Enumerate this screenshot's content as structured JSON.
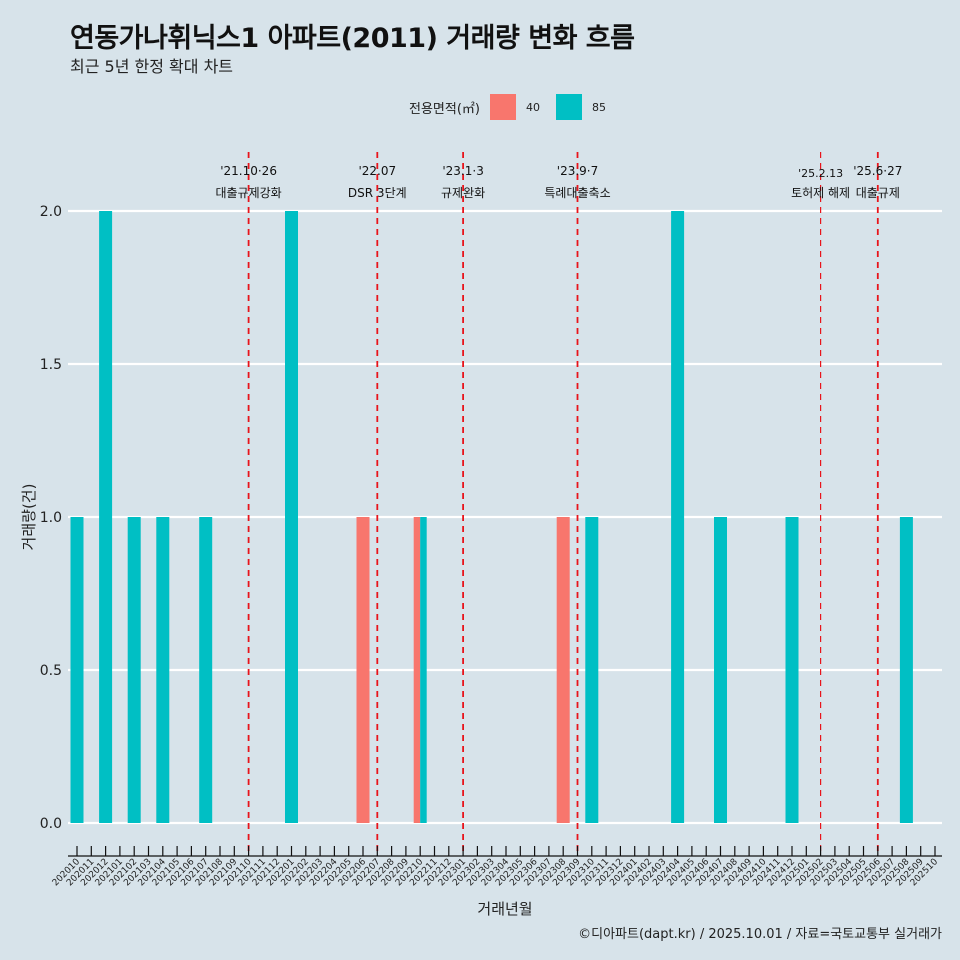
{
  "header": {
    "title": "연동가나휘닉스1 아파트(2011) 거래량 변화 흐름",
    "subtitle": "최근 5년 한정 확대 차트"
  },
  "legend": {
    "title": "전용면적(㎡)",
    "items": [
      {
        "label": "40",
        "color": "#F8766D"
      },
      {
        "label": "85",
        "color": "#00BFC4"
      }
    ]
  },
  "caption": "©디아파트(dapt.kr) / 2025.10.01 / 자료=국토교통부 실거래가",
  "chart_data": {
    "type": "bar",
    "title": "연동가나휘닉스1 아파트(2011) 거래량 변화 흐름",
    "subtitle": "최근 5년 한정 확대 차트",
    "xlabel": "거래년월",
    "ylabel": "거래량(건)",
    "ylim": [
      0,
      2
    ],
    "yticks": [
      "0.0",
      "0.5",
      "1.0",
      "1.5",
      "2.0"
    ],
    "ytick_values": [
      0,
      0.5,
      1.0,
      1.5,
      2.0
    ],
    "grid": true,
    "legend_position": "top",
    "categories": [
      "202010",
      "202011",
      "202012",
      "202101",
      "202102",
      "202103",
      "202104",
      "202105",
      "202106",
      "202107",
      "202108",
      "202109",
      "202110",
      "202111",
      "202112",
      "202201",
      "202202",
      "202203",
      "202204",
      "202205",
      "202206",
      "202207",
      "202208",
      "202209",
      "202210",
      "202211",
      "202212",
      "202301",
      "202302",
      "202303",
      "202304",
      "202305",
      "202306",
      "202307",
      "202308",
      "202309",
      "202310",
      "202311",
      "202312",
      "202401",
      "202402",
      "202403",
      "202404",
      "202405",
      "202406",
      "202407",
      "202408",
      "202409",
      "202410",
      "202411",
      "202412",
      "202501",
      "202502",
      "202503",
      "202504",
      "202505",
      "202506",
      "202507",
      "202508",
      "202509",
      "202510"
    ],
    "series": [
      {
        "name": "40",
        "color": "#F8766D",
        "points": [
          {
            "x": "202206",
            "y": 1
          },
          {
            "x": "202210",
            "y": 1
          },
          {
            "x": "202308",
            "y": 1
          }
        ]
      },
      {
        "name": "85",
        "color": "#00BFC4",
        "points": [
          {
            "x": "202010",
            "y": 1
          },
          {
            "x": "202012",
            "y": 2
          },
          {
            "x": "202102",
            "y": 1
          },
          {
            "x": "202104",
            "y": 1
          },
          {
            "x": "202107",
            "y": 1
          },
          {
            "x": "202201",
            "y": 2
          },
          {
            "x": "202210",
            "y": 1
          },
          {
            "x": "202310",
            "y": 1
          },
          {
            "x": "202404",
            "y": 2
          },
          {
            "x": "202407",
            "y": 1
          },
          {
            "x": "202412",
            "y": 1
          },
          {
            "x": "202508",
            "y": 1
          }
        ]
      }
    ],
    "annotations": [
      {
        "x": "202110",
        "line1": "'21.10·26",
        "line2": "대출규제강화",
        "color": "#E8141B"
      },
      {
        "x": "202207",
        "line1": "'22.07",
        "line2": "DSR 3단계",
        "color": "#E8141B"
      },
      {
        "x": "202301",
        "line1": "'23.1·3",
        "line2": "규제완화",
        "color": "#E8141B"
      },
      {
        "x": "202309",
        "line1": "'23.9·7",
        "line2": "특례대출축소",
        "color": "#E8141B"
      },
      {
        "x": "202502",
        "line1": "'25.2.13",
        "line2": "토허제 해제",
        "color": "#E8141B"
      },
      {
        "x": "202506",
        "line1": "'25.6·27",
        "line2": "대출규제",
        "color": "#E8141B"
      }
    ]
  }
}
